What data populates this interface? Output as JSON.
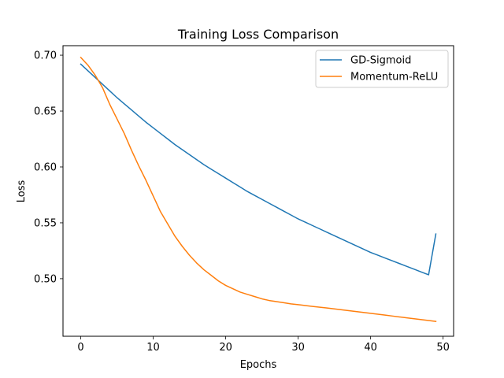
{
  "chart_data": {
    "type": "line",
    "title": "Training Loss Comparison",
    "xlabel": "Epochs",
    "ylabel": "Loss",
    "xlim": [
      -2.45,
      51.45
    ],
    "ylim": [
      0.4485,
      0.7085
    ],
    "xticks": [
      0,
      10,
      20,
      30,
      40,
      50
    ],
    "yticks": [
      0.5,
      0.55,
      0.6,
      0.65,
      0.7
    ],
    "grid": false,
    "legend_position": "top-right",
    "series": [
      {
        "name": "GD-Sigmoid",
        "color": "#1f77b4",
        "x": [
          0,
          1,
          2,
          3,
          4,
          5,
          6,
          7,
          8,
          9,
          10,
          11,
          12,
          13,
          14,
          15,
          16,
          17,
          18,
          19,
          20,
          21,
          22,
          23,
          24,
          25,
          26,
          27,
          28,
          29,
          30,
          31,
          32,
          33,
          34,
          35,
          36,
          37,
          38,
          39,
          40,
          41,
          42,
          43,
          44,
          45,
          46,
          47,
          48,
          49
        ],
        "y": [
          0.692,
          0.686,
          0.68,
          0.674,
          0.668,
          0.662,
          0.6565,
          0.651,
          0.6455,
          0.64,
          0.635,
          0.63,
          0.625,
          0.62,
          0.6155,
          0.611,
          0.6065,
          0.602,
          0.598,
          0.594,
          0.59,
          0.586,
          0.582,
          0.578,
          0.5745,
          0.571,
          0.5675,
          0.564,
          0.5605,
          0.557,
          0.5535,
          0.5505,
          0.5475,
          0.5445,
          0.5415,
          0.5385,
          0.5355,
          0.5325,
          0.5295,
          0.5265,
          0.5235,
          0.521,
          0.5185,
          0.516,
          0.5135,
          0.511,
          0.5085,
          0.506,
          0.5035,
          0.54
        ]
      },
      {
        "name": "Momentum-ReLU",
        "color": "#ff7f0e",
        "x": [
          0,
          1,
          2,
          3,
          4,
          5,
          6,
          7,
          8,
          9,
          10,
          11,
          12,
          13,
          14,
          15,
          16,
          17,
          18,
          19,
          20,
          21,
          22,
          23,
          24,
          25,
          26,
          27,
          28,
          29,
          30,
          31,
          32,
          33,
          34,
          35,
          36,
          37,
          38,
          39,
          40,
          41,
          42,
          43,
          44,
          45,
          46,
          47,
          48,
          49
        ],
        "y": [
          0.698,
          0.691,
          0.682,
          0.671,
          0.656,
          0.643,
          0.63,
          0.615,
          0.601,
          0.588,
          0.574,
          0.56,
          0.549,
          0.538,
          0.529,
          0.521,
          0.514,
          0.508,
          0.503,
          0.498,
          0.494,
          0.491,
          0.488,
          0.486,
          0.484,
          0.482,
          0.4805,
          0.4795,
          0.4785,
          0.4775,
          0.4768,
          0.476,
          0.4752,
          0.4745,
          0.4738,
          0.473,
          0.4722,
          0.4714,
          0.4706,
          0.4698,
          0.469,
          0.4682,
          0.4674,
          0.4666,
          0.4658,
          0.465,
          0.4642,
          0.4634,
          0.4626,
          0.4618
        ]
      }
    ]
  }
}
